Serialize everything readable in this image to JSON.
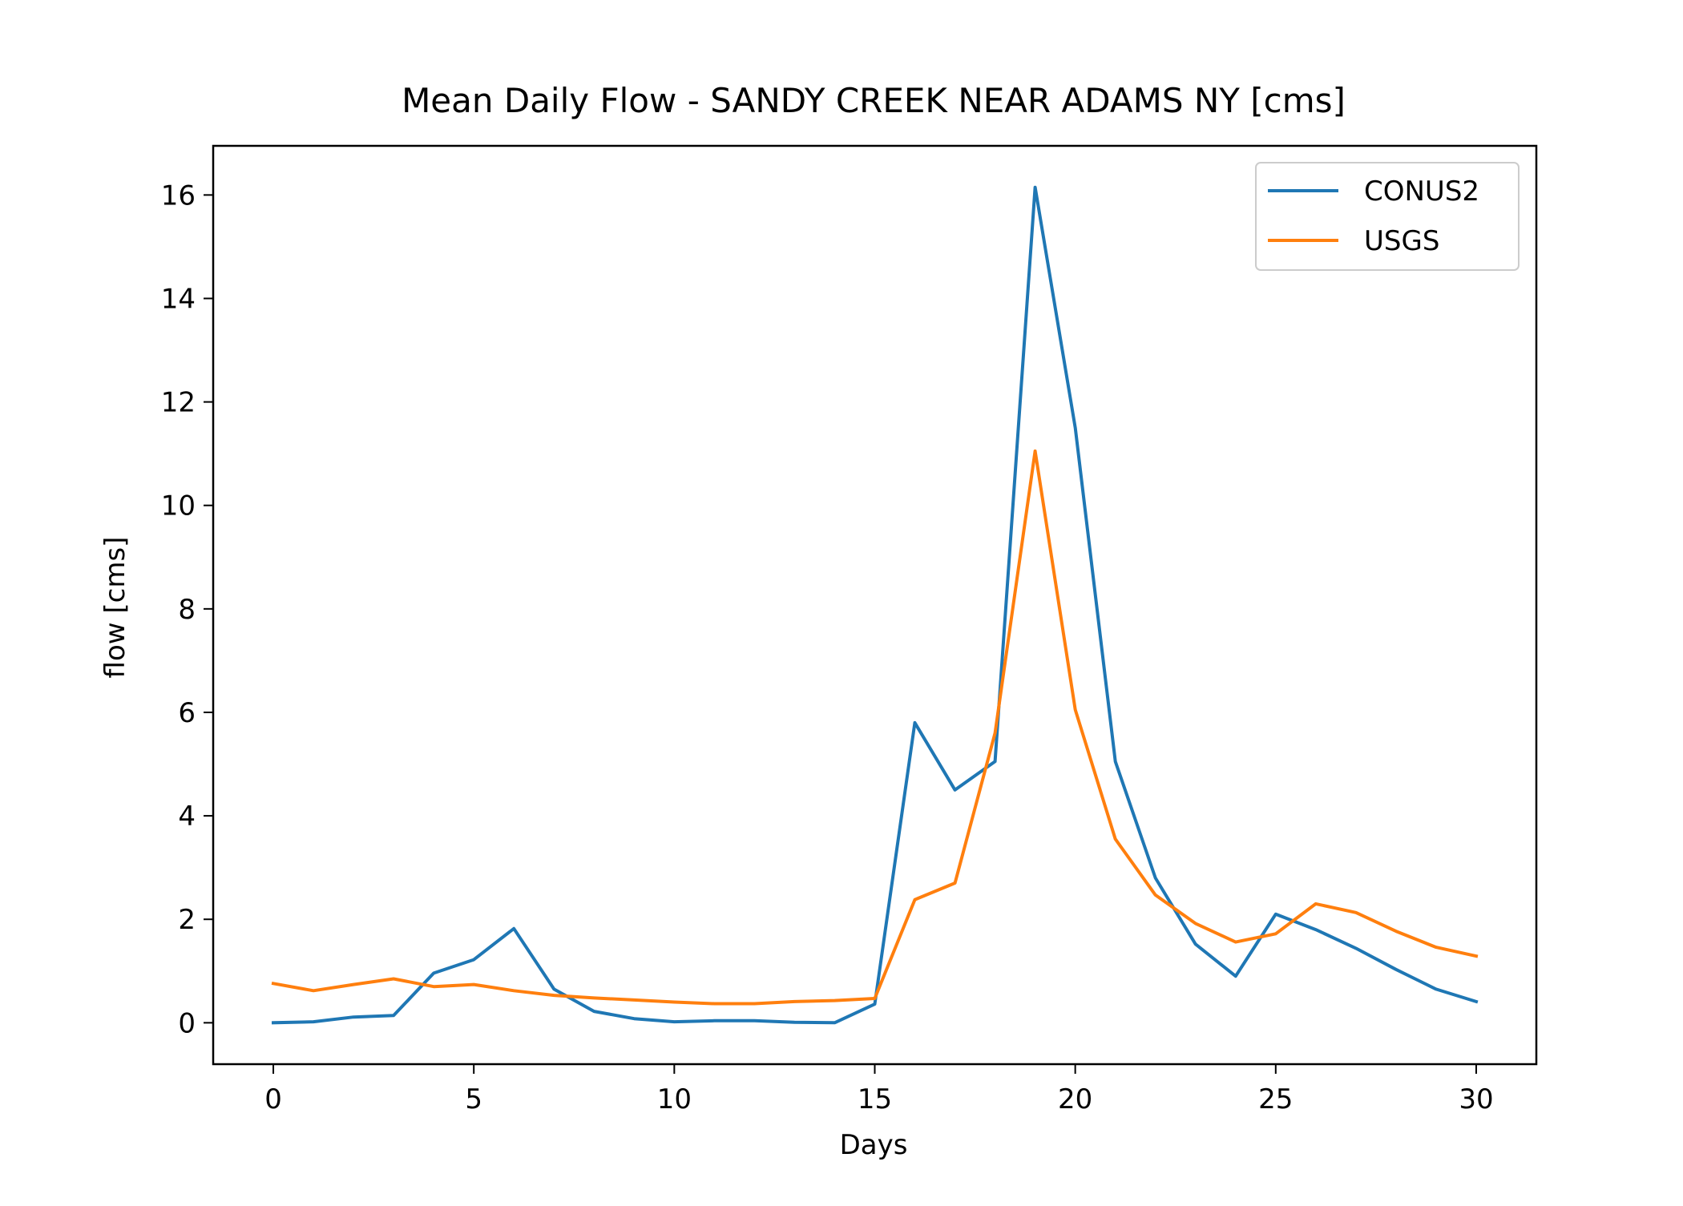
{
  "chart_data": {
    "type": "line",
    "title": "Mean Daily Flow - SANDY CREEK NEAR ADAMS NY [cms]",
    "xlabel": "Days",
    "ylabel": "flow [cms]",
    "xlim": [
      -1.5,
      31.5
    ],
    "ylim": [
      -0.8,
      16.95
    ],
    "xticks": [
      0,
      5,
      10,
      15,
      20,
      25,
      30
    ],
    "yticks": [
      0,
      2,
      4,
      6,
      8,
      10,
      12,
      14,
      16
    ],
    "grid": false,
    "legend_position": "upper right",
    "x": [
      0,
      1,
      2,
      3,
      4,
      5,
      6,
      7,
      8,
      9,
      10,
      11,
      12,
      13,
      14,
      15,
      16,
      17,
      18,
      19,
      20,
      21,
      22,
      23,
      24,
      25,
      26,
      27,
      28,
      29,
      30
    ],
    "series": [
      {
        "name": "CONUS2",
        "color": "#1f77b4",
        "values": [
          0.0,
          0.02,
          0.11,
          0.14,
          0.96,
          1.22,
          1.82,
          0.65,
          0.22,
          0.08,
          0.02,
          0.04,
          0.04,
          0.01,
          0.0,
          0.36,
          5.8,
          4.5,
          5.05,
          16.15,
          11.5,
          5.05,
          2.8,
          1.52,
          0.9,
          2.1,
          1.8,
          1.44,
          1.03,
          0.65,
          0.41
        ]
      },
      {
        "name": "USGS",
        "color": "#ff7f0e",
        "values": [
          0.76,
          0.62,
          0.74,
          0.85,
          0.7,
          0.74,
          0.62,
          0.53,
          0.48,
          0.44,
          0.4,
          0.37,
          0.37,
          0.41,
          0.43,
          0.47,
          2.38,
          2.7,
          5.6,
          11.05,
          6.05,
          3.55,
          2.47,
          1.92,
          1.56,
          1.72,
          2.3,
          2.13,
          1.77,
          1.46,
          1.29
        ]
      }
    ]
  }
}
